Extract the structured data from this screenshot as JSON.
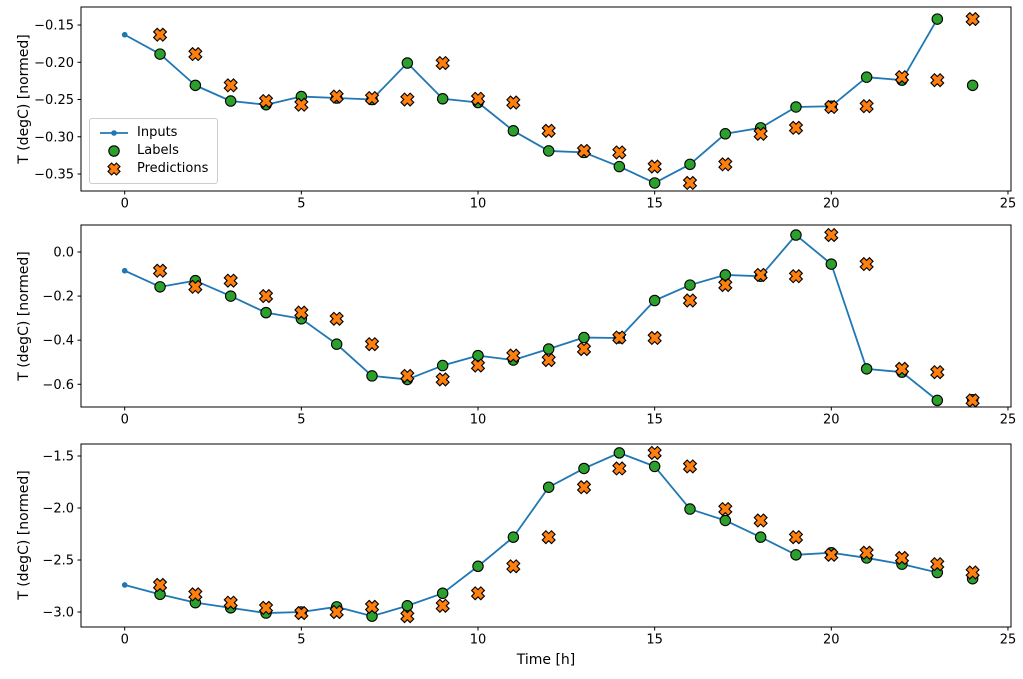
{
  "figure": {
    "background": "#ffffff"
  },
  "colors": {
    "inputs_line": "#1f77b4",
    "labels_marker": "#2ca02c",
    "predictions_marker": "#ff7f0e",
    "marker_edge": "#000000",
    "axis": "#000000",
    "tick_label": "#000000",
    "legend_border": "#cccccc"
  },
  "legend": {
    "items": [
      {
        "label": "Inputs",
        "marker": "line-with-dot",
        "color": "#1f77b4"
      },
      {
        "label": "Labels",
        "marker": "filled-circle",
        "color": "#2ca02c"
      },
      {
        "label": "Predictions",
        "marker": "filled-x",
        "color": "#ff7f0e"
      }
    ]
  },
  "chart_data": [
    {
      "type": "line",
      "title": "",
      "xlabel": "",
      "ylabel": "T (degC) [normed]",
      "xlim": [
        -1.237,
        25.086
      ],
      "ylim": [
        -0.3728,
        -0.1258
      ],
      "xticks": [
        0,
        5,
        10,
        15,
        20,
        25
      ],
      "xtick_labels": [
        "0",
        "5",
        "10",
        "15",
        "20",
        "25"
      ],
      "yticks": [
        -0.15,
        -0.2,
        -0.25,
        -0.3,
        -0.35
      ],
      "ytick_labels": [
        "−0.15",
        "−0.20",
        "−0.25",
        "−0.30",
        "−0.35"
      ],
      "legend_visible": true,
      "series": [
        {
          "name": "Inputs",
          "style": "line-with-dot",
          "x": [
            0,
            1,
            2,
            3,
            4,
            5,
            6,
            7,
            8,
            9,
            10,
            11,
            12,
            13,
            14,
            15,
            16,
            17,
            18,
            19,
            20,
            21,
            22,
            23
          ],
          "values": [
            -0.163,
            -0.189,
            -0.231,
            -0.252,
            -0.257,
            -0.246,
            -0.248,
            -0.25,
            -0.201,
            -0.249,
            -0.254,
            -0.292,
            -0.319,
            -0.321,
            -0.34,
            -0.362,
            -0.337,
            -0.296,
            -0.288,
            -0.26,
            -0.259,
            -0.22,
            -0.224,
            -0.142
          ]
        },
        {
          "name": "Labels",
          "style": "scatter-circle",
          "x": [
            1,
            2,
            3,
            4,
            5,
            6,
            7,
            8,
            9,
            10,
            11,
            12,
            13,
            14,
            15,
            16,
            17,
            18,
            19,
            20,
            21,
            22,
            23,
            24
          ],
          "values": [
            -0.189,
            -0.231,
            -0.252,
            -0.257,
            -0.246,
            -0.248,
            -0.25,
            -0.201,
            -0.249,
            -0.254,
            -0.292,
            -0.319,
            -0.321,
            -0.34,
            -0.362,
            -0.337,
            -0.296,
            -0.288,
            -0.26,
            -0.259,
            -0.22,
            -0.224,
            -0.142,
            -0.231
          ]
        },
        {
          "name": "Predictions",
          "style": "scatter-x",
          "x": [
            1,
            2,
            3,
            4,
            5,
            6,
            7,
            8,
            9,
            10,
            11,
            12,
            13,
            14,
            15,
            16,
            17,
            18,
            19,
            20,
            21,
            22,
            23,
            24
          ],
          "values": [
            -0.163,
            -0.189,
            -0.231,
            -0.252,
            -0.257,
            -0.246,
            -0.248,
            -0.25,
            -0.201,
            -0.249,
            -0.254,
            -0.292,
            -0.319,
            -0.321,
            -0.34,
            -0.362,
            -0.337,
            -0.296,
            -0.288,
            -0.26,
            -0.259,
            -0.22,
            -0.224,
            -0.142
          ]
        }
      ]
    },
    {
      "type": "line",
      "title": "",
      "xlabel": "",
      "ylabel": "T (degC) [normed]",
      "xlim": [
        -1.237,
        25.086
      ],
      "ylim": [
        -0.703,
        0.1224
      ],
      "xticks": [
        0,
        5,
        10,
        15,
        20,
        25
      ],
      "xtick_labels": [
        "0",
        "5",
        "10",
        "15",
        "20",
        "25"
      ],
      "yticks": [
        0.0,
        -0.2,
        -0.4,
        -0.6
      ],
      "ytick_labels": [
        "0.0",
        "−0.2",
        "−0.4",
        "−0.6"
      ],
      "legend_visible": false,
      "series": [
        {
          "name": "Inputs",
          "style": "line-with-dot",
          "x": [
            0,
            1,
            2,
            3,
            4,
            5,
            6,
            7,
            8,
            9,
            10,
            11,
            12,
            13,
            14,
            15,
            16,
            17,
            18,
            19,
            20,
            21,
            22,
            23
          ],
          "values": [
            -0.085,
            -0.158,
            -0.13,
            -0.2,
            -0.275,
            -0.303,
            -0.418,
            -0.562,
            -0.578,
            -0.515,
            -0.47,
            -0.49,
            -0.44,
            -0.388,
            -0.39,
            -0.22,
            -0.15,
            -0.104,
            -0.11,
            0.077,
            -0.055,
            -0.53,
            -0.545,
            -0.673
          ]
        },
        {
          "name": "Labels",
          "style": "scatter-circle",
          "x": [
            1,
            2,
            3,
            4,
            5,
            6,
            7,
            8,
            9,
            10,
            11,
            12,
            13,
            14,
            15,
            16,
            17,
            18,
            19,
            20,
            21,
            22,
            23,
            24
          ],
          "values": [
            -0.158,
            -0.13,
            -0.2,
            -0.275,
            -0.303,
            -0.418,
            -0.562,
            -0.578,
            -0.515,
            -0.47,
            -0.49,
            -0.44,
            -0.388,
            -0.39,
            -0.22,
            -0.15,
            -0.104,
            -0.11,
            0.077,
            -0.055,
            -0.53,
            -0.545,
            -0.673,
            -0.67
          ]
        },
        {
          "name": "Predictions",
          "style": "scatter-x",
          "x": [
            1,
            2,
            3,
            4,
            5,
            6,
            7,
            8,
            9,
            10,
            11,
            12,
            13,
            14,
            15,
            16,
            17,
            18,
            19,
            20,
            21,
            22,
            23,
            24
          ],
          "values": [
            -0.085,
            -0.158,
            -0.13,
            -0.2,
            -0.275,
            -0.303,
            -0.418,
            -0.562,
            -0.578,
            -0.515,
            -0.47,
            -0.49,
            -0.44,
            -0.388,
            -0.39,
            -0.22,
            -0.15,
            -0.104,
            -0.11,
            0.077,
            -0.055,
            -0.53,
            -0.545,
            -0.673
          ]
        }
      ]
    },
    {
      "type": "line",
      "title": "",
      "xlabel": "Time [h]",
      "ylabel": "T (degC) [normed]",
      "xlim": [
        -1.237,
        25.086
      ],
      "ylim": [
        -3.144,
        -1.3846
      ],
      "xticks": [
        0,
        5,
        10,
        15,
        20,
        25
      ],
      "xtick_labels": [
        "0",
        "5",
        "10",
        "15",
        "20",
        "25"
      ],
      "yticks": [
        -1.5,
        -2.0,
        -2.5,
        -3.0
      ],
      "ytick_labels": [
        "−1.5",
        "−2.0",
        "−2.5",
        "−3.0"
      ],
      "legend_visible": false,
      "series": [
        {
          "name": "Inputs",
          "style": "line-with-dot",
          "x": [
            0,
            1,
            2,
            3,
            4,
            5,
            6,
            7,
            8,
            9,
            10,
            11,
            12,
            13,
            14,
            15,
            16,
            17,
            18,
            19,
            20,
            21,
            22,
            23
          ],
          "values": [
            -2.74,
            -2.83,
            -2.91,
            -2.96,
            -3.01,
            -3.0,
            -2.95,
            -3.04,
            -2.94,
            -2.82,
            -2.56,
            -2.28,
            -1.8,
            -1.62,
            -1.47,
            -1.6,
            -2.01,
            -2.12,
            -2.28,
            -2.45,
            -2.43,
            -2.48,
            -2.54,
            -2.62
          ]
        },
        {
          "name": "Labels",
          "style": "scatter-circle",
          "x": [
            1,
            2,
            3,
            4,
            5,
            6,
            7,
            8,
            9,
            10,
            11,
            12,
            13,
            14,
            15,
            16,
            17,
            18,
            19,
            20,
            21,
            22,
            23,
            24
          ],
          "values": [
            -2.83,
            -2.91,
            -2.96,
            -3.01,
            -3.0,
            -2.95,
            -3.04,
            -2.94,
            -2.82,
            -2.56,
            -2.28,
            -1.8,
            -1.62,
            -1.47,
            -1.6,
            -2.01,
            -2.12,
            -2.28,
            -2.45,
            -2.43,
            -2.48,
            -2.54,
            -2.62,
            -2.68
          ]
        },
        {
          "name": "Predictions",
          "style": "scatter-x",
          "x": [
            1,
            2,
            3,
            4,
            5,
            6,
            7,
            8,
            9,
            10,
            11,
            12,
            13,
            14,
            15,
            16,
            17,
            18,
            19,
            20,
            21,
            22,
            23,
            24
          ],
          "values": [
            -2.74,
            -2.83,
            -2.91,
            -2.96,
            -3.01,
            -3.0,
            -2.95,
            -3.04,
            -2.94,
            -2.82,
            -2.56,
            -2.28,
            -1.8,
            -1.62,
            -1.47,
            -1.6,
            -2.01,
            -2.12,
            -2.28,
            -2.45,
            -2.43,
            -2.48,
            -2.54,
            -2.62
          ]
        }
      ]
    }
  ]
}
